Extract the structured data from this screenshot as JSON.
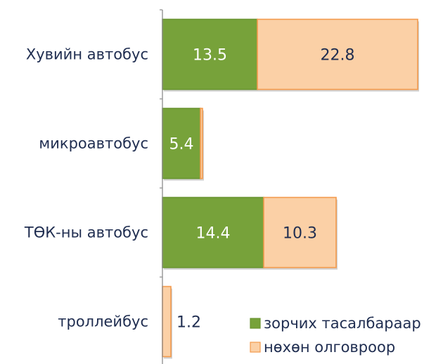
{
  "chart_data": {
    "type": "bar",
    "orientation": "horizontal",
    "stacked": true,
    "categories": [
      "Хувийн автобус",
      "микроавтобус",
      "ТӨК-ны автобус",
      "троллейбус"
    ],
    "series": [
      {
        "name": "зорчих тасалбараар",
        "values": [
          13.5,
          5.4,
          14.4,
          0
        ],
        "color": "#77a23a",
        "label_color": "#ffffff"
      },
      {
        "name": "нөхөн олговроор",
        "values": [
          22.8,
          0.3,
          10.3,
          1.2
        ],
        "color": "#fbd0a6",
        "label_color": "#1f2d50"
      }
    ],
    "data_labels": [
      [
        "13.5",
        "5.4",
        "14.4",
        ""
      ],
      [
        "22.8",
        "",
        "10.3",
        "1.2"
      ]
    ],
    "xlim": [
      0,
      38
    ],
    "legend_position": "bottom-right",
    "grid": false
  }
}
